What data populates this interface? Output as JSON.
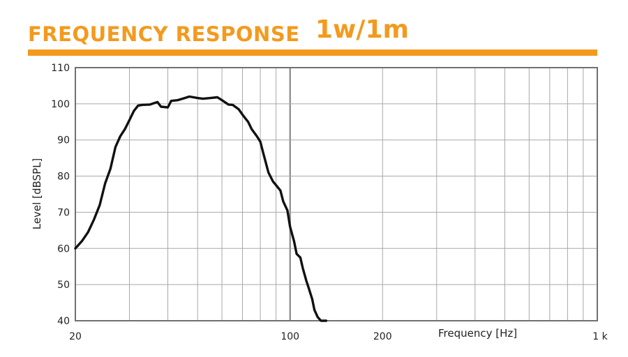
{
  "header": {
    "title": "FREQUENCY RESPONSE",
    "title_suffix": "1w/1m",
    "accent_color": "#f39a1e"
  },
  "chart_data": {
    "type": "line",
    "title": "FREQUENCY RESPONSE 1w/1m",
    "xlabel": "Frequency [Hz]",
    "ylabel": "Level [dBSPL]",
    "x_scale": "log",
    "xlim": [
      20,
      1000
    ],
    "ylim": [
      40,
      110
    ],
    "x_ticks": [
      {
        "value": 20,
        "label": "20"
      },
      {
        "value": 100,
        "label": "100"
      },
      {
        "value": 200,
        "label": "200"
      },
      {
        "value": 1000,
        "label": "1 k"
      }
    ],
    "y_ticks": [
      {
        "value": 40,
        "label": "40"
      },
      {
        "value": 50,
        "label": "50"
      },
      {
        "value": 60,
        "label": "60"
      },
      {
        "value": 70,
        "label": "70"
      },
      {
        "value": 80,
        "label": "80"
      },
      {
        "value": 90,
        "label": "90"
      },
      {
        "value": 100,
        "label": "100"
      },
      {
        "value": 110,
        "label": "110"
      }
    ],
    "grid": true,
    "series": [
      {
        "line_color": "#111111",
        "x": [
          20,
          21,
          22,
          23,
          24,
          25,
          26,
          27,
          28,
          29,
          30,
          31,
          32,
          33,
          35,
          37,
          38,
          40,
          41,
          43,
          45,
          47,
          50,
          52,
          55,
          58,
          60,
          63,
          65,
          68,
          70,
          73,
          75,
          78,
          80,
          82,
          85,
          88,
          90,
          93,
          95,
          98,
          100,
          103,
          105,
          108,
          110,
          113,
          115,
          118,
          120,
          123,
          126,
          128,
          131
        ],
        "y": [
          60,
          62,
          64.5,
          68,
          72,
          78,
          82,
          88,
          91,
          93,
          95.5,
          98,
          99.5,
          99.7,
          99.8,
          100.5,
          99.2,
          99,
          100.8,
          101,
          101.5,
          102,
          101.6,
          101.4,
          101.6,
          101.8,
          101,
          99.8,
          99.7,
          98.5,
          97,
          95,
          93,
          91,
          89.5,
          86,
          81,
          78.5,
          77.5,
          76,
          73,
          70.5,
          66,
          62,
          58.5,
          57.5,
          54.5,
          51,
          49,
          46,
          43,
          41,
          40,
          40,
          40
        ]
      }
    ]
  }
}
